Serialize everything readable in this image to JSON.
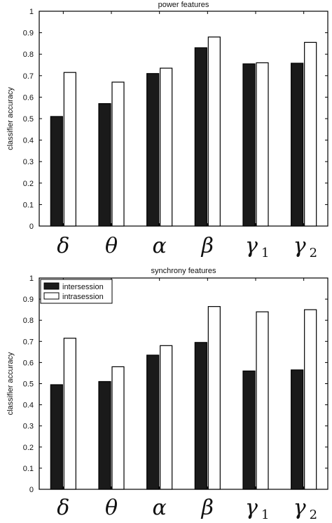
{
  "chart_data": [
    {
      "type": "bar",
      "title": "power features",
      "ylabel": "classifier accuracy",
      "xlabel": "",
      "ylim": [
        0,
        1
      ],
      "yticks": [
        "0",
        "0.1",
        "0.2",
        "0.3",
        "0.4",
        "0.5",
        "0.6",
        "0.7",
        "0.8",
        "0.9",
        "1"
      ],
      "categories": [
        {
          "base": "δ",
          "sub": ""
        },
        {
          "base": "θ",
          "sub": ""
        },
        {
          "base": "α",
          "sub": ""
        },
        {
          "base": "β",
          "sub": ""
        },
        {
          "base": "γ",
          "sub": "1"
        },
        {
          "base": "γ",
          "sub": "2"
        }
      ],
      "series": [
        {
          "values": [
            0.51,
            0.57,
            0.71,
            0.83,
            0.755,
            0.758
          ],
          "color": "#1a1a1a"
        },
        {
          "values": [
            0.715,
            0.67,
            0.735,
            0.88,
            0.76,
            0.855
          ],
          "color": "#ffffff"
        }
      ],
      "legend": null
    },
    {
      "type": "bar",
      "title": "synchrony features",
      "ylabel": "classifier accuracy",
      "xlabel": "",
      "ylim": [
        0,
        1
      ],
      "yticks": [
        "0",
        "0.1",
        "0.2",
        "0.3",
        "0.4",
        "0.5",
        "0.6",
        "0.7",
        "0.8",
        "0.9",
        "1"
      ],
      "categories": [
        {
          "base": "δ",
          "sub": ""
        },
        {
          "base": "θ",
          "sub": ""
        },
        {
          "base": "α",
          "sub": ""
        },
        {
          "base": "β",
          "sub": ""
        },
        {
          "base": "γ",
          "sub": "1"
        },
        {
          "base": "γ",
          "sub": "2"
        }
      ],
      "series": [
        {
          "name": "intersession",
          "values": [
            0.495,
            0.51,
            0.635,
            0.695,
            0.56,
            0.565
          ],
          "color": "#1a1a1a"
        },
        {
          "name": "intrasession",
          "values": [
            0.715,
            0.58,
            0.68,
            0.865,
            0.84,
            0.85
          ],
          "color": "#ffffff"
        }
      ],
      "legend": "top-left"
    }
  ]
}
